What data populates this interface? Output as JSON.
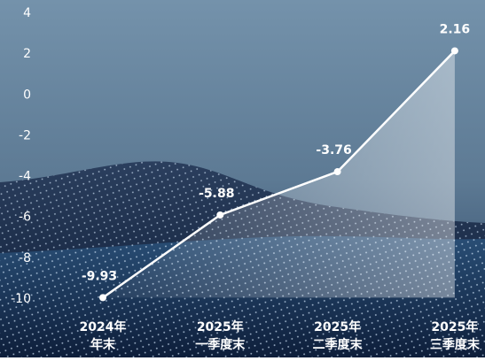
{
  "chart_data": {
    "type": "line",
    "categories": [
      [
        "2024年",
        "年末"
      ],
      [
        "2025年",
        "一季度末"
      ],
      [
        "2025年",
        "二季度末"
      ],
      [
        "2025年",
        "三季度末"
      ]
    ],
    "values": [
      -9.93,
      -5.88,
      -3.76,
      2.16
    ],
    "color": "#ffffff",
    "ylim": [
      -10,
      4
    ],
    "yticks": [
      4,
      2,
      0,
      -2,
      -4,
      -6,
      -8,
      -10
    ]
  }
}
